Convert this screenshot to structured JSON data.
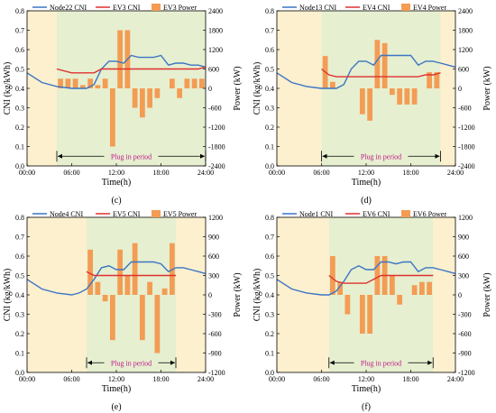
{
  "chart_data": [
    {
      "type": "bar+line",
      "caption": "(c)",
      "legend": [
        "Node22 CNI",
        "EV3 CNI",
        "EV3 Power"
      ],
      "xlabel": "Time(h)",
      "ylabel": "CNI (kg/kWh)",
      "y2label": "Power (kW)",
      "xticks": [
        "00:00",
        "06:00",
        "12:00",
        "18:00",
        "24:00"
      ],
      "yticks": [
        "0.0",
        "0.1",
        "0.2",
        "0.3",
        "0.4",
        "0.5",
        "0.6",
        "0.7",
        "0.8"
      ],
      "y2ticks": [
        "-2400",
        "-1800",
        "-1200",
        "-600",
        "0",
        "600",
        "1200",
        "1800",
        "2400"
      ],
      "ylim": [
        0,
        0.8
      ],
      "y2lim": [
        -2400,
        2400
      ],
      "xlim": [
        0,
        24
      ],
      "plug_window": [
        4,
        24
      ],
      "plug_label": "Plug in period",
      "node_cni": {
        "x": [
          0,
          2,
          4,
          6,
          7,
          8,
          9,
          10,
          11,
          12,
          13,
          14,
          15,
          16,
          17,
          18,
          19,
          20,
          21,
          22,
          23,
          24
        ],
        "y": [
          0.48,
          0.43,
          0.41,
          0.4,
          0.4,
          0.4,
          0.42,
          0.5,
          0.54,
          0.54,
          0.53,
          0.57,
          0.56,
          0.56,
          0.56,
          0.57,
          0.52,
          0.53,
          0.53,
          0.52,
          0.52,
          0.51
        ]
      },
      "ev_cni": {
        "x": [
          4,
          6,
          7,
          8,
          9,
          10,
          11,
          12,
          13,
          14,
          15,
          16,
          17,
          18,
          19,
          20,
          21,
          22,
          23,
          24
        ],
        "y": [
          0.5,
          0.48,
          0.48,
          0.48,
          0.48,
          0.5,
          0.5,
          0.5,
          0.5,
          0.5,
          0.5,
          0.5,
          0.5,
          0.5,
          0.5,
          0.5,
          0.5,
          0.5,
          0.5,
          0.51
        ]
      },
      "power": {
        "x": [
          4.5,
          5.5,
          6.5,
          7.5,
          8.5,
          9.5,
          10.5,
          11.5,
          12.5,
          13.5,
          14.5,
          15.5,
          16.5,
          17.5,
          19.5,
          20.5,
          21.5,
          22.5,
          23.5
        ],
        "y": [
          300,
          300,
          300,
          100,
          300,
          100,
          300,
          -1800,
          1800,
          1800,
          -600,
          -900,
          -600,
          -300,
          300,
          -300,
          300,
          300,
          300
        ]
      }
    },
    {
      "type": "bar+line",
      "caption": "(d)",
      "legend": [
        "Node13 CNI",
        "EV4 CNI",
        "EV4 Power"
      ],
      "xlabel": "Time(h)",
      "ylabel": "CNI (kg/kWh)",
      "y2label": "Power (kW)",
      "xticks": [
        "00:00",
        "06:00",
        "12:00",
        "18:00",
        "24:00"
      ],
      "yticks": [
        "0.0",
        "0.1",
        "0.2",
        "0.3",
        "0.4",
        "0.5",
        "0.6",
        "0.7",
        "0.8"
      ],
      "y2ticks": [
        "-2400",
        "-1800",
        "-1200",
        "-600",
        "0",
        "600",
        "1200",
        "1800",
        "2400"
      ],
      "ylim": [
        0,
        0.8
      ],
      "y2lim": [
        -2400,
        2400
      ],
      "xlim": [
        0,
        24
      ],
      "plug_window": [
        6,
        22
      ],
      "plug_label": "Plug in period",
      "node_cni": {
        "x": [
          0,
          2,
          4,
          6,
          7,
          8,
          9,
          10,
          11,
          12,
          13,
          14,
          15,
          16,
          17,
          18,
          19,
          20,
          21,
          22,
          23,
          24
        ],
        "y": [
          0.48,
          0.43,
          0.41,
          0.4,
          0.4,
          0.4,
          0.42,
          0.5,
          0.54,
          0.54,
          0.52,
          0.57,
          0.57,
          0.57,
          0.57,
          0.57,
          0.52,
          0.54,
          0.54,
          0.53,
          0.52,
          0.51
        ]
      },
      "ev_cni": {
        "x": [
          6,
          7,
          8,
          9,
          10,
          11,
          12,
          13,
          14,
          15,
          16,
          17,
          18,
          19,
          20,
          21,
          22
        ],
        "y": [
          0.5,
          0.47,
          0.46,
          0.46,
          0.46,
          0.46,
          0.46,
          0.46,
          0.46,
          0.46,
          0.46,
          0.46,
          0.46,
          0.46,
          0.47,
          0.47,
          0.48
        ]
      },
      "power": {
        "x": [
          6.5,
          7.5,
          11.5,
          12.5,
          13.5,
          14.5,
          15.5,
          16.5,
          17.5,
          18.5,
          20.5,
          21.5
        ],
        "y": [
          1000,
          200,
          -800,
          -1000,
          1500,
          1400,
          -200,
          -500,
          -500,
          -500,
          500,
          500
        ]
      }
    },
    {
      "type": "bar+line",
      "caption": "(e)",
      "legend": [
        "Node4 CNI",
        "EV5 CNI",
        "EV5 Power"
      ],
      "xlabel": "Time(h)",
      "ylabel": "CNI (kg/kWh)",
      "y2label": "Power (kW)",
      "xticks": [
        "00:00",
        "06:00",
        "12:00",
        "18:00",
        "24:00"
      ],
      "yticks": [
        "0.0",
        "0.1",
        "0.2",
        "0.3",
        "0.4",
        "0.5",
        "0.6",
        "0.7",
        "0.8"
      ],
      "y2ticks": [
        "-1200",
        "-900",
        "-600",
        "-300",
        "0",
        "300",
        "600",
        "900",
        "1200"
      ],
      "ylim": [
        0,
        0.8
      ],
      "y2lim": [
        -1200,
        1200
      ],
      "xlim": [
        0,
        24
      ],
      "plug_window": [
        8,
        20
      ],
      "plug_label": "Plug in period",
      "node_cni": {
        "x": [
          0,
          2,
          4,
          6,
          7,
          8,
          9,
          10,
          11,
          12,
          13,
          14,
          15,
          16,
          17,
          18,
          19,
          20,
          21,
          22,
          23,
          24
        ],
        "y": [
          0.48,
          0.43,
          0.41,
          0.4,
          0.41,
          0.43,
          0.48,
          0.54,
          0.55,
          0.53,
          0.53,
          0.57,
          0.57,
          0.57,
          0.57,
          0.56,
          0.52,
          0.54,
          0.54,
          0.53,
          0.52,
          0.51
        ]
      },
      "ev_cni": {
        "x": [
          8,
          9,
          10,
          11,
          12,
          13,
          14,
          15,
          16,
          17,
          18,
          19,
          20
        ],
        "y": [
          0.52,
          0.5,
          0.5,
          0.5,
          0.5,
          0.5,
          0.5,
          0.5,
          0.5,
          0.5,
          0.5,
          0.5,
          0.5
        ]
      },
      "power": {
        "x": [
          8.5,
          9.5,
          10.5,
          11.5,
          12.5,
          13.5,
          14.5,
          15.5,
          16.5,
          17.5,
          18.5,
          19.5
        ],
        "y": [
          700,
          200,
          -100,
          -700,
          700,
          300,
          800,
          -700,
          200,
          -900,
          100,
          800
        ]
      }
    },
    {
      "type": "bar+line",
      "caption": "(f)",
      "legend": [
        "Node1 CNI",
        "EV6 CNI",
        "EV6 Power"
      ],
      "xlabel": "Time(h)",
      "ylabel": "CNI (kg/kWh)",
      "y2label": "Power (kW)",
      "xticks": [
        "00:00",
        "06:00",
        "12:00",
        "18:00",
        "24:00"
      ],
      "yticks": [
        "0.0",
        "0.1",
        "0.2",
        "0.3",
        "0.4",
        "0.5",
        "0.6",
        "0.7",
        "0.8"
      ],
      "y2ticks": [
        "-1200",
        "-900",
        "-600",
        "-300",
        "0",
        "300",
        "600",
        "900",
        "1200"
      ],
      "ylim": [
        0,
        0.8
      ],
      "y2lim": [
        -1200,
        1200
      ],
      "xlim": [
        0,
        24
      ],
      "plug_window": [
        7,
        21
      ],
      "plug_label": "Plug in period",
      "node_cni": {
        "x": [
          0,
          2,
          4,
          6,
          7,
          8,
          9,
          10,
          11,
          12,
          13,
          14,
          15,
          16,
          17,
          18,
          19,
          20,
          21,
          22,
          23,
          24
        ],
        "y": [
          0.48,
          0.43,
          0.41,
          0.4,
          0.4,
          0.42,
          0.47,
          0.53,
          0.55,
          0.53,
          0.53,
          0.57,
          0.57,
          0.56,
          0.57,
          0.57,
          0.52,
          0.54,
          0.54,
          0.53,
          0.52,
          0.51
        ]
      },
      "ev_cni": {
        "x": [
          7,
          8,
          9,
          10,
          11,
          12,
          13,
          14,
          15,
          16,
          17,
          18,
          19,
          20,
          21
        ],
        "y": [
          0.5,
          0.47,
          0.46,
          0.46,
          0.46,
          0.46,
          0.48,
          0.5,
          0.5,
          0.5,
          0.5,
          0.5,
          0.5,
          0.5,
          0.5
        ]
      },
      "power": {
        "x": [
          7.5,
          8.5,
          9.5,
          11.5,
          12.5,
          13.5,
          14.5,
          15.5,
          16.5,
          18.5,
          19.5,
          20.5
        ],
        "y": [
          600,
          200,
          -300,
          -600,
          -600,
          600,
          600,
          300,
          -150,
          150,
          200,
          200
        ]
      }
    }
  ]
}
